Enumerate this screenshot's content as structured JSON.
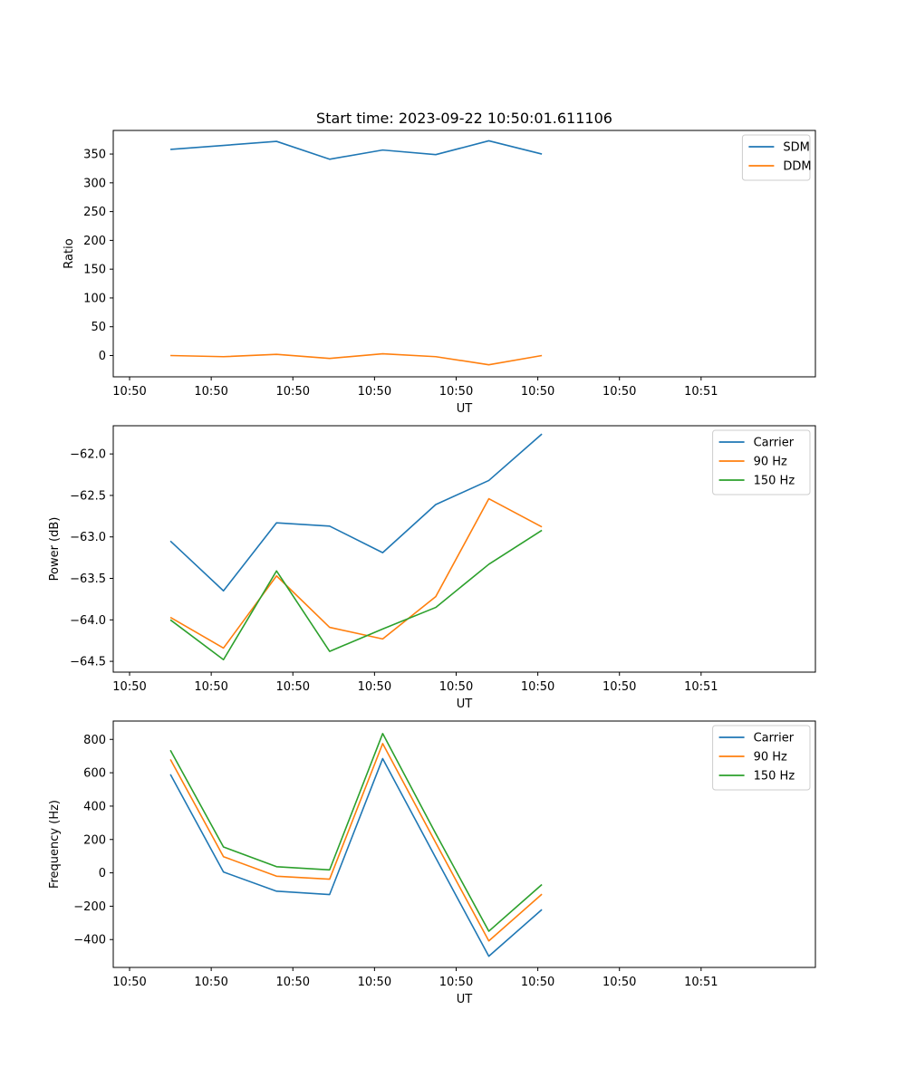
{
  "figure_title": "Start time: 2023-09-22 10:50:01.611106",
  "chart_data": [
    {
      "type": "line",
      "xlabel": "UT",
      "ylabel": "Ratio",
      "x_tick_labels": [
        "10:50",
        "10:50",
        "10:50",
        "10:50",
        "10:50",
        "10:50",
        "10:50",
        "10:51"
      ],
      "x_range": [
        -0.2,
        8.4
      ],
      "x": [
        0.5,
        1.15,
        1.8,
        2.45,
        3.1,
        3.75,
        4.4,
        5.05
      ],
      "ylim": [
        -37,
        391
      ],
      "yticks": [
        0,
        50,
        100,
        150,
        200,
        250,
        300,
        350
      ],
      "y_tick_labels": [
        "0",
        "50",
        "100",
        "150",
        "200",
        "250",
        "300",
        "350"
      ],
      "legend_position": "upper right",
      "series": [
        {
          "name": "SDM",
          "color": "#1f77b4",
          "values": [
            358,
            365,
            372,
            341,
            357,
            349,
            373,
            350
          ]
        },
        {
          "name": "DDM",
          "color": "#ff7f0e",
          "values": [
            0,
            -2,
            2,
            -5,
            3,
            -2,
            -16,
            0
          ]
        }
      ]
    },
    {
      "type": "line",
      "xlabel": "UT",
      "ylabel": "Power (dB)",
      "x_tick_labels": [
        "10:50",
        "10:50",
        "10:50",
        "10:50",
        "10:50",
        "10:50",
        "10:50",
        "10:51"
      ],
      "x_range": [
        -0.2,
        8.4
      ],
      "x": [
        0.5,
        1.15,
        1.8,
        2.45,
        3.1,
        3.75,
        4.4,
        5.05
      ],
      "ylim": [
        -64.63,
        -61.66
      ],
      "yticks": [
        -64.5,
        -64.0,
        -63.5,
        -63.0,
        -62.5,
        -62.0
      ],
      "y_tick_labels": [
        "−64.5",
        "−64.0",
        "−63.5",
        "−63.0",
        "−62.5",
        "−62.0"
      ],
      "legend_position": "upper right",
      "series": [
        {
          "name": "Carrier",
          "color": "#1f77b4",
          "values": [
            -63.05,
            -63.65,
            -62.83,
            -62.87,
            -63.19,
            -62.61,
            -62.32,
            -61.76
          ]
        },
        {
          "name": "90 Hz",
          "color": "#ff7f0e",
          "values": [
            -63.97,
            -64.34,
            -63.47,
            -64.09,
            -64.23,
            -63.72,
            -62.54,
            -62.88
          ]
        },
        {
          "name": "150 Hz",
          "color": "#2ca02c",
          "values": [
            -64.0,
            -64.48,
            -63.41,
            -64.38,
            -64.11,
            -63.85,
            -63.33,
            -62.92
          ]
        }
      ]
    },
    {
      "type": "line",
      "xlabel": "UT",
      "ylabel": "Frequency (Hz)",
      "x_tick_labels": [
        "10:50",
        "10:50",
        "10:50",
        "10:50",
        "10:50",
        "10:50",
        "10:50",
        "10:51"
      ],
      "x_range": [
        -0.2,
        8.4
      ],
      "x": [
        0.5,
        1.15,
        1.8,
        2.45,
        3.1,
        3.75,
        4.4,
        5.05
      ],
      "ylim": [
        -567,
        910
      ],
      "yticks": [
        -400,
        -200,
        0,
        200,
        400,
        600,
        800
      ],
      "y_tick_labels": [
        "−400",
        "−200",
        "0",
        "200",
        "400",
        "600",
        "800"
      ],
      "legend_position": "upper right",
      "series": [
        {
          "name": "Carrier",
          "color": "#1f77b4",
          "values": [
            590,
            5,
            -110,
            -130,
            685,
            90,
            -500,
            -220
          ]
        },
        {
          "name": "90 Hz",
          "color": "#ff7f0e",
          "values": [
            680,
            97,
            -20,
            -38,
            775,
            180,
            -408,
            -128
          ]
        },
        {
          "name": "150 Hz",
          "color": "#2ca02c",
          "values": [
            735,
            155,
            37,
            18,
            835,
            235,
            -350,
            -70
          ]
        }
      ]
    }
  ]
}
